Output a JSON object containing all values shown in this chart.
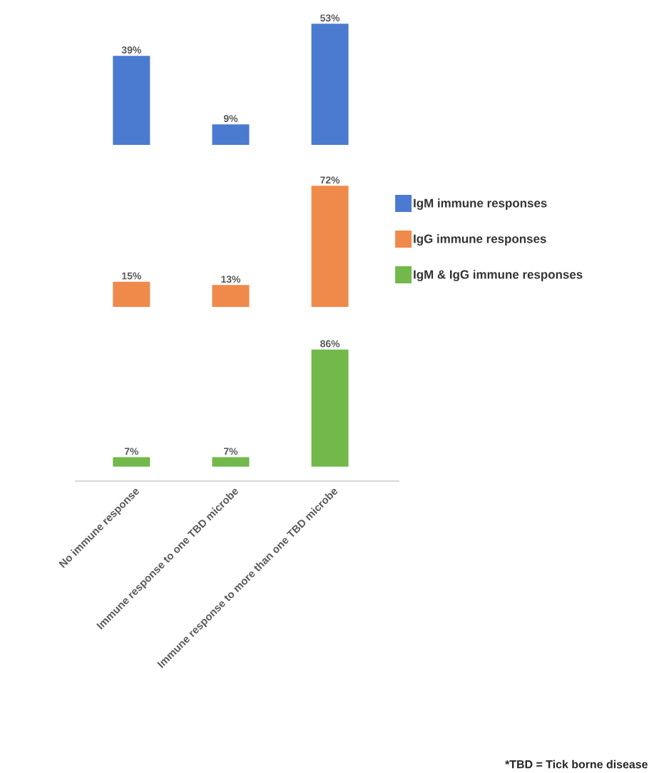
{
  "chart_data": [
    {
      "type": "bar",
      "categories": [
        null,
        null,
        null
      ],
      "series": [
        {
          "name": "IgM immune responses",
          "color": "#4a7bd0",
          "values": [
            39,
            9,
            53
          ],
          "value_labels": [
            "39%",
            "9%",
            "53%"
          ]
        }
      ],
      "legend": "right",
      "tick_labels": false
    },
    {
      "type": "bar",
      "categories": [
        null,
        null,
        null
      ],
      "series": [
        {
          "name": "IgG immune responses",
          "color": "#f08a4b",
          "values": [
            15,
            13,
            72
          ],
          "value_labels": [
            "15%",
            "13%",
            "72%"
          ]
        }
      ],
      "legend": "right",
      "tick_labels": false
    },
    {
      "type": "bar",
      "categories": [
        "No immune response",
        "Immune response to one TBD microbe",
        "Immune response to more than one TBD microbe"
      ],
      "series": [
        {
          "name": "IgM & IgG  immune responses",
          "color": "#72b84a",
          "values": [
            7,
            7,
            86
          ],
          "value_labels": [
            "7%",
            "7%",
            "86%"
          ]
        }
      ],
      "legend": "right",
      "tick_labels": "x",
      "annotations": [
        "*TBD = Tick borne disease"
      ]
    }
  ]
}
